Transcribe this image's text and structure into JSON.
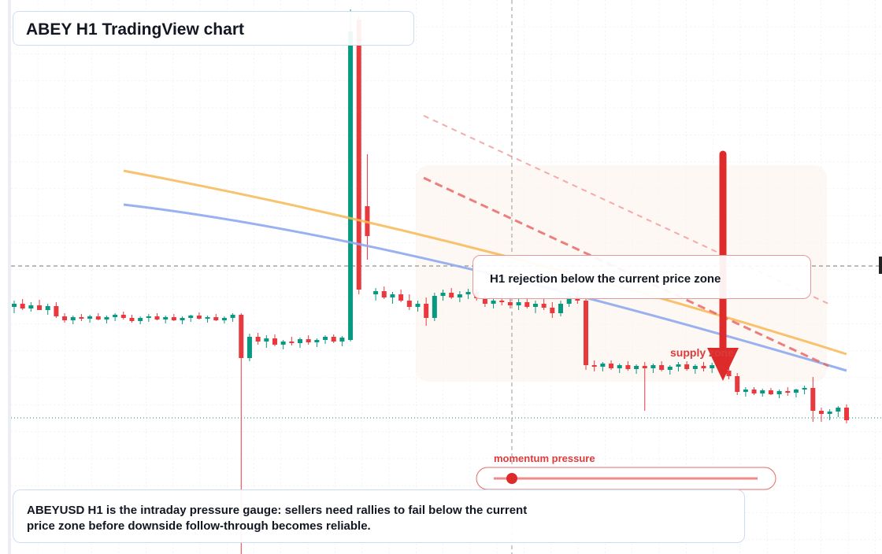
{
  "chart_data": {
    "type": "candlestick",
    "title": "ABEY H1 TradingView chart",
    "annotation": "H1 rejection below the current price zone",
    "zone_label": "supply zone",
    "gauge_label": "momentum pressure",
    "caption": "ABEYUSD H1 is the intraday pressure gauge: sellers need rallies to fail below the current price zone before downside follow-through becomes reliable.",
    "ylim": [
      0,
      704
    ],
    "up_color": "#089981",
    "down_color": "#e8393f",
    "open": [
      314,
      318,
      312,
      316,
      310,
      315,
      302,
      297,
      301,
      299,
      302,
      298,
      301,
      304,
      300,
      296,
      300,
      302,
      298,
      301,
      297,
      300,
      303,
      299,
      301,
      297,
      300,
      304,
      249,
      276,
      270,
      274,
      266,
      270,
      268,
      273,
      269,
      272,
      276,
      270,
      272,
      679,
      442,
      330,
      334,
      326,
      330,
      322,
      314,
      318,
      300,
      328,
      332,
      326,
      330,
      333,
      325,
      318,
      322,
      320,
      316,
      320,
      314,
      318,
      313,
      306,
      318,
      328,
      322,
      240,
      238,
      242,
      236,
      240,
      235,
      239,
      236,
      240,
      234,
      238,
      241,
      235,
      239,
      236,
      240,
      233,
      226,
      206,
      209,
      204,
      208,
      203,
      207,
      205,
      209,
      211,
      182,
      178,
      181,
      186
    ],
    "high": [
      322,
      324,
      320,
      323,
      318,
      320,
      306,
      303,
      305,
      304,
      306,
      303,
      306,
      308,
      304,
      302,
      305,
      306,
      303,
      305,
      302,
      304,
      307,
      303,
      305,
      302,
      306,
      306,
      280,
      281,
      278,
      279,
      272,
      276,
      275,
      278,
      274,
      278,
      279,
      277,
      692,
      684,
      508,
      338,
      340,
      333,
      336,
      330,
      322,
      326,
      332,
      336,
      338,
      334,
      337,
      336,
      330,
      326,
      330,
      327,
      324,
      326,
      322,
      325,
      320,
      322,
      334,
      336,
      326,
      246,
      244,
      246,
      242,
      245,
      241,
      244,
      242,
      245,
      240,
      244,
      245,
      241,
      244,
      243,
      244,
      238,
      230,
      212,
      212,
      210,
      211,
      209,
      212,
      210,
      214,
      225,
      186,
      184,
      188,
      190
    ],
    "low": [
      306,
      310,
      308,
      311,
      304,
      300,
      294,
      292,
      296,
      294,
      297,
      293,
      296,
      298,
      294,
      292,
      295,
      297,
      293,
      296,
      292,
      295,
      298,
      294,
      296,
      293,
      295,
      0,
      245,
      266,
      262,
      264,
      260,
      265,
      262,
      266,
      263,
      267,
      268,
      264,
      270,
      330,
      374,
      322,
      324,
      318,
      320,
      310,
      308,
      290,
      296,
      322,
      324,
      320,
      324,
      322,
      314,
      312,
      316,
      312,
      310,
      312,
      306,
      310,
      300,
      302,
      314,
      318,
      234,
      232,
      232,
      234,
      230,
      233,
      229,
      182,
      230,
      232,
      228,
      232,
      233,
      229,
      232,
      230,
      231,
      222,
      202,
      200,
      202,
      200,
      202,
      198,
      201,
      199,
      203,
      168,
      168,
      170,
      174,
      166
    ],
    "close": [
      318,
      312,
      316,
      310,
      315,
      302,
      297,
      301,
      299,
      302,
      298,
      301,
      304,
      300,
      296,
      300,
      302,
      298,
      301,
      297,
      300,
      303,
      299,
      301,
      297,
      300,
      304,
      249,
      276,
      270,
      274,
      266,
      270,
      268,
      273,
      269,
      272,
      276,
      270,
      275,
      664,
      336,
      404,
      334,
      326,
      330,
      322,
      314,
      318,
      300,
      328,
      332,
      326,
      330,
      333,
      325,
      318,
      322,
      320,
      316,
      320,
      314,
      318,
      313,
      306,
      318,
      328,
      322,
      240,
      238,
      242,
      236,
      240,
      235,
      239,
      236,
      240,
      234,
      238,
      241,
      235,
      239,
      236,
      240,
      233,
      226,
      206,
      209,
      204,
      208,
      203,
      207,
      205,
      209,
      211,
      182,
      178,
      181,
      186,
      170
    ]
  }
}
